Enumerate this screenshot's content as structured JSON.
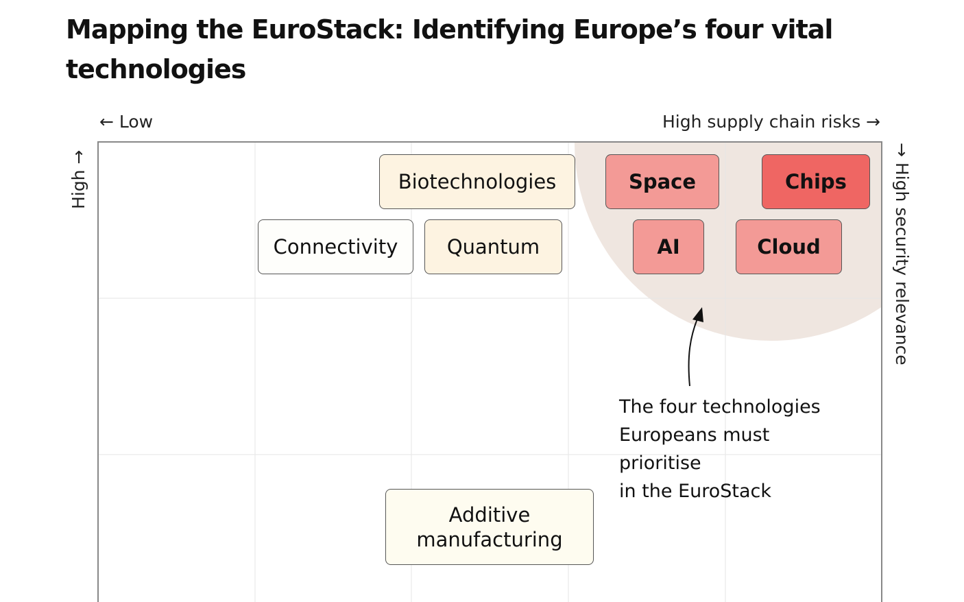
{
  "title": "Mapping the EuroStack: Identifying Europe’s four vital technologies",
  "axes": {
    "x_low": "← Low",
    "x_high": "High supply chain risks →",
    "y_left": "High →",
    "y_right": "→ High security relevance"
  },
  "technologies": {
    "biotech": "Biotechnologies",
    "connectivity": "Connectivity",
    "quantum": "Quantum",
    "space": "Space",
    "chips": "Chips",
    "ai": "AI",
    "cloud": "Cloud",
    "additive": "Additive manufacturing"
  },
  "annotation": {
    "lines": [
      "The four technologies",
      "Europeans must",
      "prioritise",
      "in the EuroStack"
    ]
  },
  "colors": {
    "priority_zone": "#efe6e0",
    "chips": "#ef6663",
    "priority": "#f39a96",
    "medium": "#fdf3e1",
    "low": "#fefefb"
  }
}
